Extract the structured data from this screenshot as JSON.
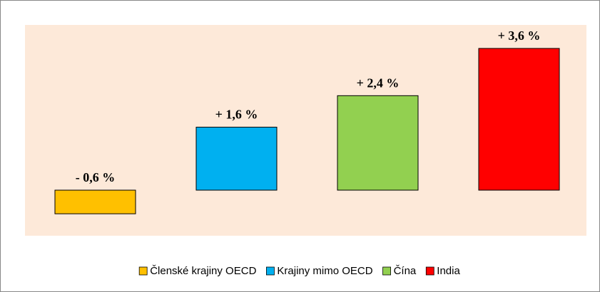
{
  "chart_data": {
    "type": "bar",
    "categories": [
      "Členské krajiny OECD",
      "Krajiny mimo OECD",
      "Čína",
      "India"
    ],
    "values": [
      -0.6,
      1.6,
      2.4,
      3.6
    ],
    "value_labels": [
      "- 0,6 %",
      "+ 1,6 %",
      "+ 2,4 %",
      "+ 3,6 %"
    ],
    "colors": [
      "#ffc000",
      "#00b0f0",
      "#92d050",
      "#ff0000"
    ],
    "legend": "bottom"
  }
}
